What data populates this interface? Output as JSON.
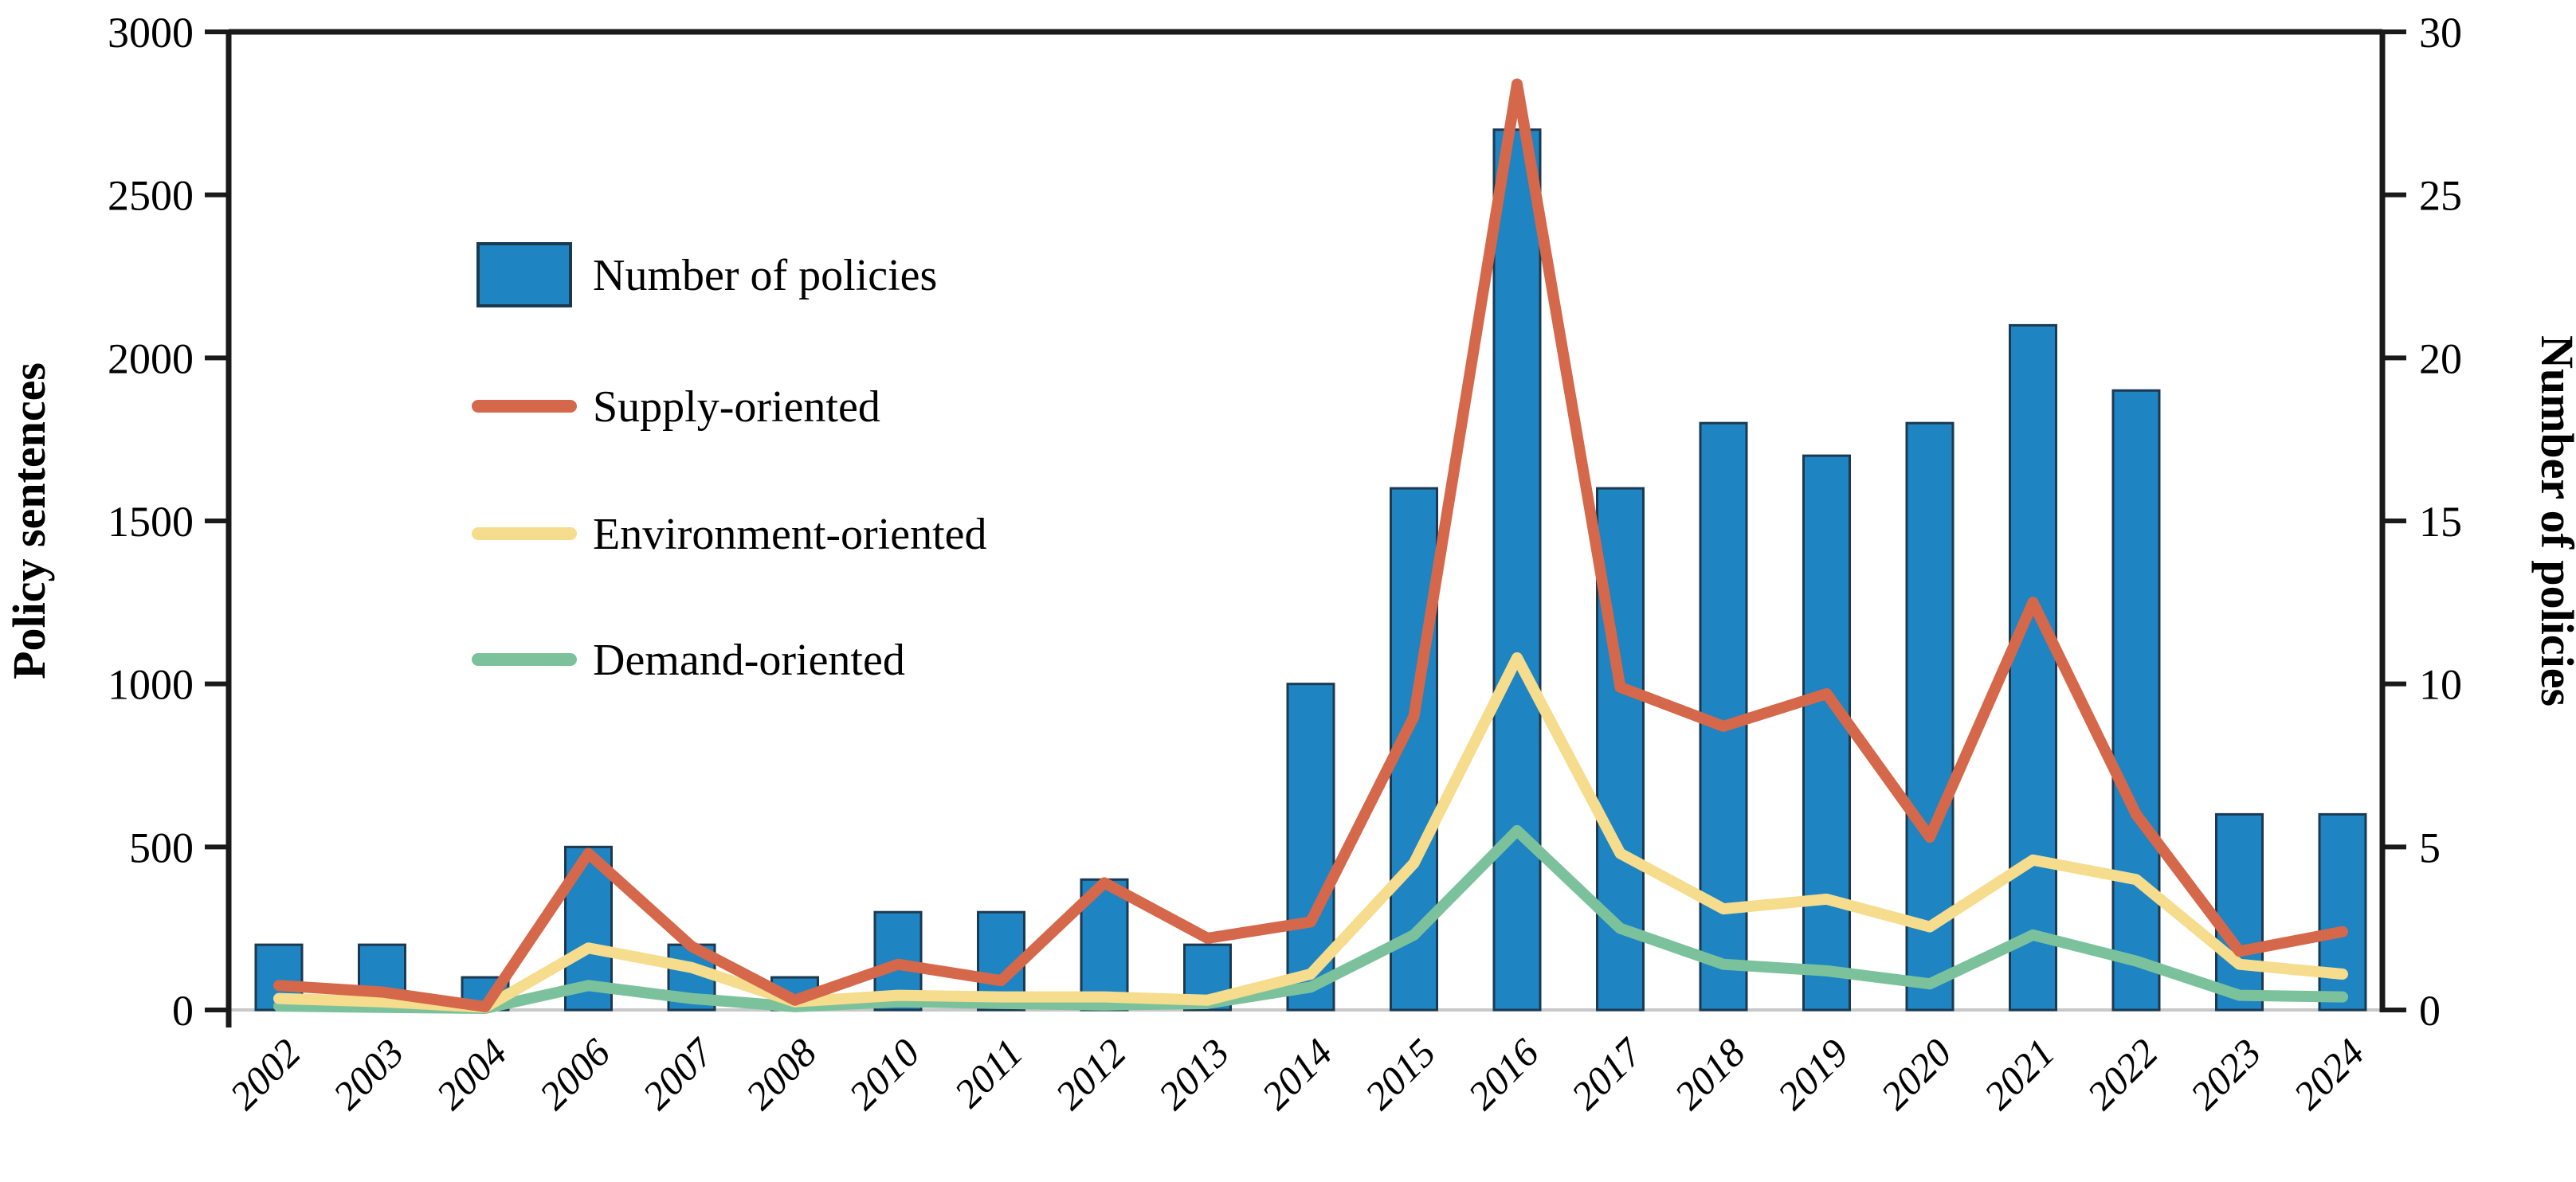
{
  "chart_data": {
    "type": "bar+line",
    "title": "",
    "categories": [
      "2002",
      "2003",
      "2004",
      "2006",
      "2007",
      "2008",
      "2010",
      "2011",
      "2012",
      "2013",
      "2014",
      "2015",
      "2016",
      "2017",
      "2018",
      "2019",
      "2020",
      "2021",
      "2022",
      "2023",
      "2024"
    ],
    "series": [
      {
        "name": "Number of policies",
        "type": "bar",
        "axis": "right",
        "color": "#1e84c2",
        "edge_color": "#1b3a52",
        "values": [
          2,
          2,
          1,
          5,
          2,
          1,
          3,
          3,
          4,
          2,
          10,
          16,
          27,
          16,
          18,
          17,
          18,
          21,
          19,
          6,
          6
        ]
      },
      {
        "name": "Supply-oriented",
        "type": "line",
        "axis": "left",
        "color": "#d5684a",
        "values": [
          75,
          55,
          10,
          480,
          195,
          30,
          140,
          90,
          390,
          220,
          270,
          900,
          2840,
          990,
          870,
          970,
          530,
          1250,
          600,
          180,
          240
        ]
      },
      {
        "name": "Environment-oriented",
        "type": "line",
        "axis": "left",
        "color": "#f6dc8d",
        "values": [
          35,
          25,
          8,
          190,
          130,
          25,
          45,
          40,
          40,
          30,
          110,
          450,
          1080,
          480,
          310,
          340,
          255,
          460,
          400,
          140,
          110
        ]
      },
      {
        "name": "Demand-oriented",
        "type": "line",
        "axis": "left",
        "color": "#7bc29c",
        "values": [
          12,
          8,
          5,
          75,
          35,
          10,
          25,
          20,
          15,
          20,
          70,
          230,
          550,
          250,
          140,
          120,
          80,
          230,
          150,
          45,
          40
        ]
      }
    ],
    "left_axis": {
      "label": "Policy sentences",
      "ticks": [
        0,
        500,
        1000,
        1500,
        2000,
        2500,
        3000
      ],
      "lim": [
        0,
        3000
      ]
    },
    "right_axis": {
      "label": "Number of policies",
      "ticks": [
        0,
        5,
        10,
        15,
        20,
        25,
        30
      ],
      "lim": [
        0,
        30
      ]
    },
    "legend": {
      "position": "upper-left-inside",
      "entries": [
        "Number of policies",
        "Supply-oriented",
        "Environment-oriented",
        "Demand-oriented"
      ]
    },
    "grid": false,
    "colors": {
      "spine": "#1a1a1a",
      "baseline": "#c8c8c8",
      "background": "#ffffff"
    }
  }
}
